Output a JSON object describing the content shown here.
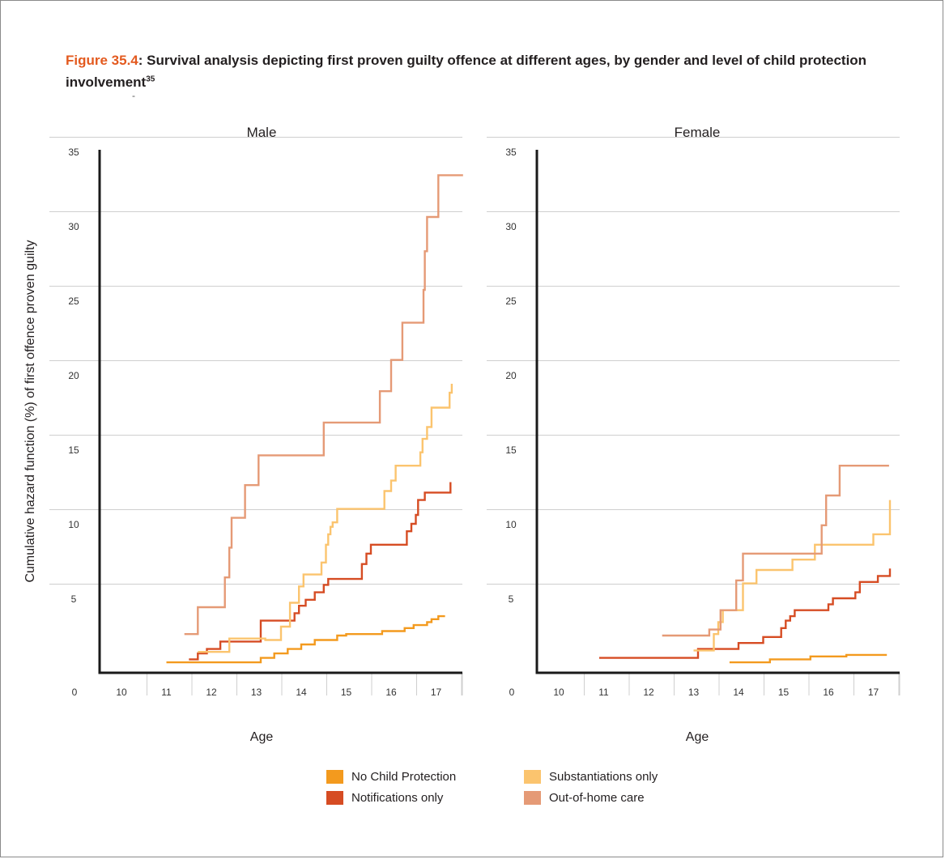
{
  "figure": {
    "number": "Figure 35.4",
    "title": ": Survival analysis depicting first proven guilty offence at different ages, by gender and level of child protection involvement",
    "footnote": "35",
    "dash_mark": "-"
  },
  "colors": {
    "no_child_protection": "#f39a1e",
    "notifications_only": "#d64c23",
    "substantiations_only": "#fbc46e",
    "out_of_home_care": "#e59a76",
    "grid": "#cfcfcf",
    "axis": "#1a1a1a"
  },
  "chart_data": [
    {
      "type": "line",
      "step": true,
      "title": "Male",
      "xlabel": "Age",
      "ylabel": "Cumulative hazard function (%) of first offence proven guilty",
      "x_ticks": [
        "0",
        "10",
        "11",
        "12",
        "13",
        "14",
        "15",
        "16",
        "17"
      ],
      "y_ticks": [
        "5",
        "10",
        "15",
        "20",
        "25",
        "30",
        "35"
      ],
      "y_zero_label": "0",
      "ylim": [
        0,
        35
      ],
      "grid": true,
      "series": [
        {
          "name": "No Child Protection",
          "color": "#f39a1e",
          "points": [
            [
              11.0,
              0.7
            ],
            [
              12.8,
              0.7
            ],
            [
              13.1,
              1.0
            ],
            [
              13.4,
              1.3
            ],
            [
              13.7,
              1.6
            ],
            [
              14.0,
              1.9
            ],
            [
              14.3,
              2.2
            ],
            [
              14.8,
              2.5
            ],
            [
              15.0,
              2.6
            ],
            [
              15.8,
              2.8
            ],
            [
              16.3,
              3.0
            ],
            [
              16.5,
              3.2
            ],
            [
              16.8,
              3.4
            ],
            [
              16.9,
              3.6
            ],
            [
              17.05,
              3.8
            ],
            [
              17.2,
              3.8
            ]
          ]
        },
        {
          "name": "Notifications only",
          "color": "#d64c23",
          "points": [
            [
              11.5,
              0.9
            ],
            [
              11.7,
              1.3
            ],
            [
              11.9,
              1.6
            ],
            [
              12.2,
              2.1
            ],
            [
              13.0,
              2.1
            ],
            [
              13.1,
              3.5
            ],
            [
              13.8,
              3.5
            ],
            [
              13.85,
              4.0
            ],
            [
              13.95,
              4.5
            ],
            [
              14.1,
              4.9
            ],
            [
              14.3,
              5.4
            ],
            [
              14.5,
              5.9
            ],
            [
              14.6,
              6.3
            ],
            [
              15.3,
              6.3
            ],
            [
              15.35,
              7.3
            ],
            [
              15.45,
              8.0
            ],
            [
              15.55,
              8.6
            ],
            [
              16.25,
              8.6
            ],
            [
              16.35,
              9.5
            ],
            [
              16.45,
              10.0
            ],
            [
              16.55,
              10.6
            ],
            [
              16.6,
              11.6
            ],
            [
              16.75,
              12.1
            ],
            [
              17.3,
              12.1
            ],
            [
              17.32,
              12.8
            ]
          ]
        },
        {
          "name": "Substantiations only",
          "color": "#fbc46e",
          "points": [
            [
              11.7,
              1.4
            ],
            [
              12.2,
              1.4
            ],
            [
              12.4,
              2.3
            ],
            [
              13.0,
              2.3
            ],
            [
              13.2,
              2.2
            ],
            [
              13.5,
              2.2
            ],
            [
              13.55,
              3.1
            ],
            [
              13.7,
              3.1
            ],
            [
              13.75,
              4.7
            ],
            [
              13.9,
              4.7
            ],
            [
              13.95,
              5.8
            ],
            [
              14.05,
              6.6
            ],
            [
              14.4,
              6.6
            ],
            [
              14.45,
              7.4
            ],
            [
              14.55,
              8.6
            ],
            [
              14.6,
              9.3
            ],
            [
              14.65,
              9.8
            ],
            [
              14.7,
              10.1
            ],
            [
              14.8,
              11.0
            ],
            [
              15.8,
              11.0
            ],
            [
              15.85,
              12.2
            ],
            [
              16.0,
              12.9
            ],
            [
              16.1,
              13.9
            ],
            [
              16.6,
              13.9
            ],
            [
              16.65,
              14.8
            ],
            [
              16.7,
              15.7
            ],
            [
              16.8,
              16.5
            ],
            [
              16.9,
              17.8
            ],
            [
              17.25,
              17.8
            ],
            [
              17.3,
              18.8
            ],
            [
              17.35,
              19.4
            ]
          ]
        },
        {
          "name": "Out-of-home care",
          "color": "#e59a76",
          "points": [
            [
              11.4,
              2.6
            ],
            [
              11.65,
              2.6
            ],
            [
              11.7,
              4.4
            ],
            [
              12.25,
              4.4
            ],
            [
              12.3,
              6.4
            ],
            [
              12.4,
              8.4
            ],
            [
              12.45,
              10.4
            ],
            [
              12.7,
              10.4
            ],
            [
              12.75,
              12.6
            ],
            [
              13.0,
              12.6
            ],
            [
              13.05,
              14.6
            ],
            [
              14.45,
              14.6
            ],
            [
              14.5,
              16.8
            ],
            [
              15.7,
              16.8
            ],
            [
              15.75,
              18.9
            ],
            [
              15.95,
              18.9
            ],
            [
              16.0,
              21.0
            ],
            [
              16.2,
              21.0
            ],
            [
              16.25,
              23.5
            ],
            [
              16.7,
              23.5
            ],
            [
              16.72,
              25.7
            ],
            [
              16.75,
              28.3
            ],
            [
              16.8,
              30.6
            ],
            [
              17.0,
              30.6
            ],
            [
              17.05,
              33.4
            ],
            [
              17.6,
              33.4
            ]
          ]
        }
      ]
    },
    {
      "type": "line",
      "step": true,
      "title": "Female",
      "xlabel": "Age",
      "ylabel": "",
      "x_ticks": [
        "0",
        "10",
        "11",
        "12",
        "13",
        "14",
        "15",
        "16",
        "17"
      ],
      "y_ticks": [
        "5",
        "10",
        "15",
        "20",
        "25",
        "30",
        "35"
      ],
      "y_zero_label": "0",
      "ylim": [
        0,
        35
      ],
      "grid": true,
      "series": [
        {
          "name": "No Child Protection",
          "color": "#f39a1e",
          "points": [
            [
              13.8,
              0.7
            ],
            [
              14.6,
              0.7
            ],
            [
              14.7,
              0.9
            ],
            [
              15.5,
              0.9
            ],
            [
              15.6,
              1.1
            ],
            [
              16.3,
              1.1
            ],
            [
              16.4,
              1.2
            ],
            [
              17.3,
              1.2
            ]
          ]
        },
        {
          "name": "Notifications only",
          "color": "#d64c23",
          "points": [
            [
              10.9,
              1.0
            ],
            [
              13.0,
              1.0
            ],
            [
              13.1,
              1.6
            ],
            [
              13.9,
              1.6
            ],
            [
              14.0,
              2.0
            ],
            [
              14.5,
              2.0
            ],
            [
              14.55,
              2.4
            ],
            [
              14.9,
              2.4
            ],
            [
              14.95,
              3.0
            ],
            [
              15.05,
              3.5
            ],
            [
              15.15,
              3.8
            ],
            [
              15.25,
              4.2
            ],
            [
              15.95,
              4.2
            ],
            [
              16.0,
              4.6
            ],
            [
              16.1,
              5.0
            ],
            [
              16.5,
              5.0
            ],
            [
              16.6,
              5.4
            ],
            [
              16.7,
              6.1
            ],
            [
              17.05,
              6.1
            ],
            [
              17.1,
              6.5
            ],
            [
              17.35,
              6.5
            ],
            [
              17.37,
              7.0
            ]
          ]
        },
        {
          "name": "Substantiations only",
          "color": "#fbc46e",
          "points": [
            [
              13.0,
              1.5
            ],
            [
              13.4,
              1.5
            ],
            [
              13.45,
              2.6
            ],
            [
              13.55,
              3.4
            ],
            [
              13.65,
              4.2
            ],
            [
              14.05,
              4.2
            ],
            [
              14.1,
              6.0
            ],
            [
              14.35,
              6.0
            ],
            [
              14.4,
              6.9
            ],
            [
              15.1,
              6.9
            ],
            [
              15.2,
              7.6
            ],
            [
              15.65,
              7.6
            ],
            [
              15.7,
              8.6
            ],
            [
              16.95,
              8.6
            ],
            [
              17.0,
              9.3
            ],
            [
              17.35,
              9.3
            ],
            [
              17.37,
              11.6
            ]
          ]
        },
        {
          "name": "Out-of-home care",
          "color": "#e59a76",
          "points": [
            [
              12.3,
              2.5
            ],
            [
              13.3,
              2.5
            ],
            [
              13.35,
              2.9
            ],
            [
              13.55,
              2.9
            ],
            [
              13.6,
              4.2
            ],
            [
              13.9,
              4.2
            ],
            [
              13.95,
              6.2
            ],
            [
              14.05,
              6.2
            ],
            [
              14.1,
              8.0
            ],
            [
              15.75,
              8.0
            ],
            [
              15.85,
              9.9
            ],
            [
              15.95,
              11.9
            ],
            [
              16.2,
              11.9
            ],
            [
              16.25,
              13.9
            ],
            [
              17.35,
              13.9
            ]
          ]
        }
      ]
    }
  ],
  "legend": {
    "items": [
      {
        "label": "No Child Protection",
        "color": "#f39a1e"
      },
      {
        "label": "Substantiations only",
        "color": "#fbc46e"
      },
      {
        "label": "Notifications only",
        "color": "#d64c23"
      },
      {
        "label": "Out-of-home care",
        "color": "#e59a76"
      }
    ]
  }
}
